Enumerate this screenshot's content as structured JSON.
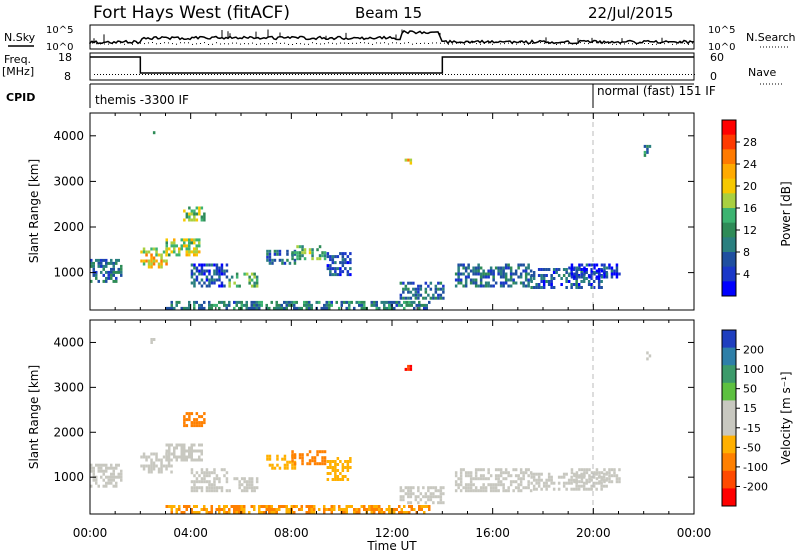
{
  "header": {
    "title": "Fort Hays West (fitACF)",
    "beam": "Beam 15",
    "date": "22/Jul/2015"
  },
  "top_panels": {
    "nsky_label": "N.Sky",
    "nsky_ticks": [
      "10^5",
      "10^0"
    ],
    "nsearch_label": "N.Search",
    "freq_label": "Freq.",
    "freq_unit": "[MHz]",
    "freq_ticks": [
      "18",
      "8"
    ],
    "nave_label": "Nave",
    "nave_ticks": [
      "60",
      "0"
    ],
    "cpid_label": "CPID",
    "cpid_segments": [
      {
        "label": "themis -3300 IF",
        "start_hour": 0,
        "end_hour": 20
      },
      {
        "label": "normal (fast) 151 IF",
        "start_hour": 20,
        "end_hour": 24
      }
    ]
  },
  "x_axis": {
    "label": "Time UT",
    "ticks": [
      "00:00",
      "04:00",
      "08:00",
      "12:00",
      "16:00",
      "20:00",
      "00:00"
    ]
  },
  "power_colorbar": {
    "label": "Power [dB]",
    "ticks": [
      "28",
      "24",
      "20",
      "16",
      "12",
      "8",
      "4"
    ],
    "colors": [
      "#ff0000",
      "#ff3a00",
      "#ff7a00",
      "#ffaa00",
      "#f6c800",
      "#a9d040",
      "#3cb370",
      "#2e8b57",
      "#2a7f7f",
      "#1f4fa0",
      "#1a37c8",
      "#0000ff"
    ]
  },
  "velocity_colorbar": {
    "label": "Velocity [m s⁻¹]",
    "ticks": [
      "200",
      "100",
      "50",
      "15",
      "-15",
      "-50",
      "-100",
      "-200"
    ],
    "colors": [
      "#1f3fbf",
      "#2e7fa8",
      "#3c9a6a",
      "#5dc040",
      "#c8c8c0",
      "#c8c8c0",
      "#ffb000",
      "#ff8000",
      "#ff4a00",
      "#ff0000"
    ]
  },
  "chart_data": [
    {
      "type": "heatmap",
      "title": "Power",
      "xlabel": "Time UT",
      "ylabel": "Slant Range [km]",
      "xlim": [
        0,
        24
      ],
      "ylim": [
        180,
        4500
      ],
      "yticks": [
        1000,
        2000,
        3000,
        4000
      ],
      "patches": [
        {
          "t0": 0.0,
          "t1": 1.2,
          "r0": 800,
          "r1": 1300,
          "value": 8
        },
        {
          "t0": 2.0,
          "t1": 3.0,
          "r0": 1100,
          "r1": 1550,
          "value": 20
        },
        {
          "t0": 3.0,
          "t1": 4.3,
          "r0": 1400,
          "r1": 1750,
          "value": 18
        },
        {
          "t0": 3.7,
          "t1": 4.5,
          "r0": 2150,
          "r1": 2450,
          "value": 16
        },
        {
          "t0": 4.0,
          "t1": 5.4,
          "r0": 700,
          "r1": 1200,
          "value": 6
        },
        {
          "t0": 5.5,
          "t1": 6.6,
          "r0": 700,
          "r1": 1000,
          "value": 14
        },
        {
          "t0": 7.0,
          "t1": 8.1,
          "r0": 1200,
          "r1": 1500,
          "value": 8
        },
        {
          "t0": 8.0,
          "t1": 9.3,
          "r0": 1300,
          "r1": 1600,
          "value": 14
        },
        {
          "t0": 9.4,
          "t1": 10.3,
          "r0": 950,
          "r1": 1450,
          "value": 6
        },
        {
          "t0": 3.0,
          "t1": 13.5,
          "r0": 200,
          "r1": 380,
          "value": 10
        },
        {
          "t0": 12.3,
          "t1": 14.0,
          "r0": 450,
          "r1": 800,
          "value": 8
        },
        {
          "t0": 14.5,
          "t1": 17.5,
          "r0": 700,
          "r1": 1200,
          "value": 8
        },
        {
          "t0": 17.5,
          "t1": 20.5,
          "r0": 700,
          "r1": 1100,
          "value": 6
        },
        {
          "t0": 19.0,
          "t1": 21.0,
          "r0": 900,
          "r1": 1200,
          "value": 4
        },
        {
          "t0": 12.5,
          "t1": 12.7,
          "r0": 3400,
          "r1": 3500,
          "value": 22
        },
        {
          "t0": 22.0,
          "t1": 22.2,
          "r0": 3600,
          "r1": 3800,
          "value": 10
        },
        {
          "t0": 2.4,
          "t1": 2.5,
          "r0": 4000,
          "r1": 4100,
          "value": 8
        }
      ]
    },
    {
      "type": "heatmap",
      "title": "Velocity",
      "xlabel": "Time UT",
      "ylabel": "Slant Range [km]",
      "xlim": [
        0,
        24
      ],
      "ylim": [
        180,
        4500
      ],
      "yticks": [
        1000,
        2000,
        3000,
        4000
      ],
      "patches": [
        {
          "t0": 0.0,
          "t1": 1.2,
          "r0": 800,
          "r1": 1300,
          "value": 0
        },
        {
          "t0": 2.0,
          "t1": 3.2,
          "r0": 1100,
          "r1": 1550,
          "value": 0
        },
        {
          "t0": 3.0,
          "t1": 4.4,
          "r0": 1400,
          "r1": 1750,
          "value": 0
        },
        {
          "t0": 3.7,
          "t1": 4.5,
          "r0": 2150,
          "r1": 2450,
          "value": -70
        },
        {
          "t0": 4.0,
          "t1": 5.4,
          "r0": 700,
          "r1": 1200,
          "value": 0
        },
        {
          "t0": 5.5,
          "t1": 6.6,
          "r0": 700,
          "r1": 1000,
          "value": 0
        },
        {
          "t0": 7.0,
          "t1": 8.1,
          "r0": 1200,
          "r1": 1500,
          "value": -40
        },
        {
          "t0": 8.0,
          "t1": 9.3,
          "r0": 1300,
          "r1": 1600,
          "value": -60
        },
        {
          "t0": 9.4,
          "t1": 10.3,
          "r0": 950,
          "r1": 1450,
          "value": -30
        },
        {
          "t0": 3.0,
          "t1": 13.5,
          "r0": 200,
          "r1": 380,
          "value": -50
        },
        {
          "t0": 12.3,
          "t1": 14.0,
          "r0": 450,
          "r1": 800,
          "value": 0
        },
        {
          "t0": 14.5,
          "t1": 17.5,
          "r0": 700,
          "r1": 1200,
          "value": 0
        },
        {
          "t0": 17.5,
          "t1": 20.5,
          "r0": 700,
          "r1": 1100,
          "value": 0
        },
        {
          "t0": 19.0,
          "t1": 21.0,
          "r0": 900,
          "r1": 1200,
          "value": 0
        },
        {
          "t0": 12.5,
          "t1": 12.7,
          "r0": 3400,
          "r1": 3500,
          "value": -150
        },
        {
          "t0": 22.0,
          "t1": 22.2,
          "r0": 3600,
          "r1": 3800,
          "value": 0
        },
        {
          "t0": 2.4,
          "t1": 2.5,
          "r0": 4000,
          "r1": 4100,
          "value": 0
        }
      ]
    }
  ]
}
